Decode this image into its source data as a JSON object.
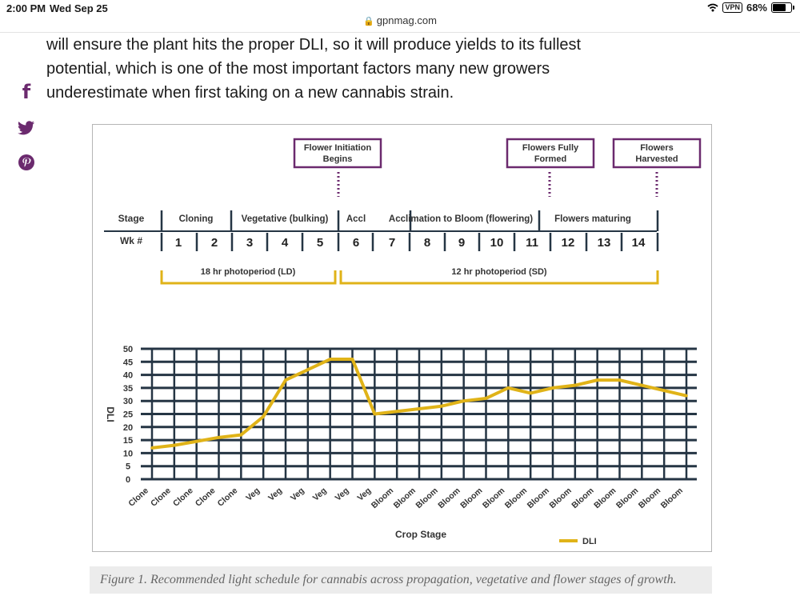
{
  "status_bar": {
    "time": "2:00 PM",
    "date": "Wed Sep 25",
    "vpn": "VPN",
    "battery": "68%"
  },
  "browser": {
    "url": "gpnmag.com"
  },
  "article": {
    "lines": [
      "will ensure the plant hits the proper DLI, so it will produce yields to its fullest",
      "potential, which is one of the most important factors many new growers",
      "underestimate when first taking on a new cannabis strain."
    ]
  },
  "social": [
    {
      "name": "facebook-icon"
    },
    {
      "name": "twitter-icon"
    },
    {
      "name": "pinterest-icon"
    }
  ],
  "caption": "Figure 1. Recommended light schedule for cannabis across propagation, vegetative and flower stages of growth.",
  "colors": {
    "accent": "#6b2a6e",
    "dli_line": "#e0b318",
    "grid": "#253544"
  },
  "timeline": {
    "callouts": [
      {
        "text": [
          "Flower Initiation",
          "Begins"
        ]
      },
      {
        "text": [
          "Flowers Fully",
          "Formed"
        ]
      },
      {
        "text": [
          "Flowers",
          "Harvested"
        ]
      }
    ],
    "stage_header": "Stage",
    "week_header": "Wk #",
    "stages": [
      "Cloning",
      "Vegetative (bulking)",
      "Accl",
      "Acclimation to Bloom (flowering)",
      "Flowers maturing"
    ],
    "weeks": [
      "1",
      "2",
      "3",
      "4",
      "5",
      "6",
      "7",
      "8",
      "9",
      "10",
      "11",
      "12",
      "13",
      "14"
    ],
    "photoperiods": [
      "18 hr photoperiod (LD)",
      "12 hr photoperiod (SD)"
    ]
  },
  "chart_data": {
    "type": "line",
    "xlabel": "Crop Stage",
    "ylabel": "DLI",
    "ylim": [
      0,
      50
    ],
    "yticks": [
      0,
      5,
      10,
      15,
      20,
      25,
      30,
      35,
      40,
      45,
      50
    ],
    "grid": true,
    "legend_position": "bottom-right",
    "categories": [
      "Clone",
      "Clone",
      "Clone",
      "Clone",
      "Clone",
      "Veg",
      "Veg",
      "Veg",
      "Veg",
      "Veg",
      "Veg",
      "Bloom",
      "Bloom",
      "Bloom",
      "Bloom",
      "Bloom",
      "Bloom",
      "Bloom",
      "Bloom",
      "Bloom",
      "Bloom",
      "Bloom",
      "Bloom",
      "Bloom",
      "Bloom"
    ],
    "series": [
      {
        "name": "DLI",
        "values": [
          12,
          13,
          14.5,
          16,
          17,
          24,
          38,
          42,
          46,
          46,
          25,
          26,
          27,
          28,
          30,
          31,
          35,
          33,
          35,
          36,
          38,
          38,
          36,
          34,
          32
        ]
      }
    ]
  }
}
